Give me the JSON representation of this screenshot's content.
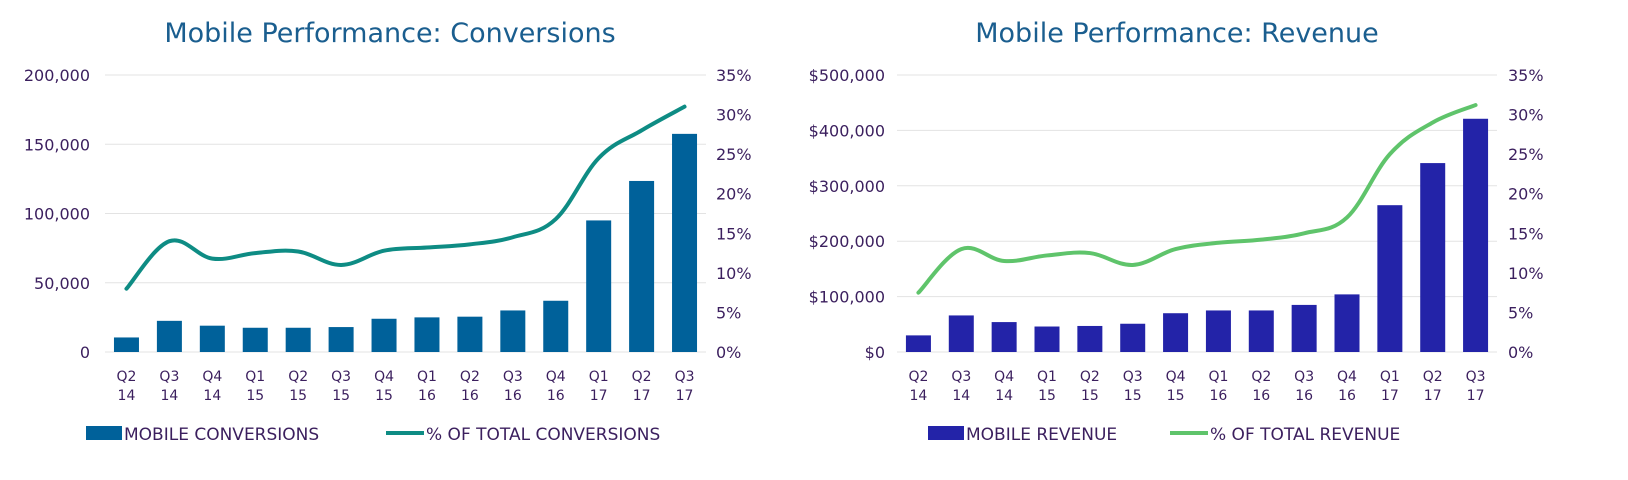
{
  "charts": [
    {
      "title": "Mobile Performance: Conversions",
      "bar_color": "#00619a",
      "line_color": "#0e8c84",
      "legend": {
        "bar_label": "MOBILE CONVERSIONS",
        "line_label": "% OF TOTAL CONVERSIONS"
      },
      "y_left_ticks": [
        "0",
        "50,000",
        "100,000",
        "150,000",
        "200,000"
      ],
      "y_right_ticks": [
        "0%",
        "5%",
        "10%",
        "15%",
        "20%",
        "25%",
        "30%",
        "35%"
      ]
    },
    {
      "title": "Mobile Performance: Revenue",
      "bar_color": "#2323a8",
      "line_color": "#5fc46b",
      "legend": {
        "bar_label": "MOBILE REVENUE",
        "line_label": "% OF TOTAL REVENUE"
      },
      "y_left_ticks": [
        "$0",
        "$100,000",
        "$200,000",
        "$300,000",
        "$400,000",
        "$500,000"
      ],
      "y_right_ticks": [
        "0%",
        "5%",
        "10%",
        "15%",
        "20%",
        "25%",
        "30%",
        "35%"
      ]
    }
  ],
  "chart_data": [
    {
      "type": "bar",
      "title": "Mobile Performance: Conversions",
      "categories": [
        [
          "Q2",
          "14"
        ],
        [
          "Q3",
          "14"
        ],
        [
          "Q4",
          "14"
        ],
        [
          "Q1",
          "15"
        ],
        [
          "Q2",
          "15"
        ],
        [
          "Q3",
          "15"
        ],
        [
          "Q4",
          "15"
        ],
        [
          "Q1",
          "16"
        ],
        [
          "Q2",
          "16"
        ],
        [
          "Q3",
          "16"
        ],
        [
          "Q4",
          "16"
        ],
        [
          "Q1",
          "17"
        ],
        [
          "Q2",
          "17"
        ],
        [
          "Q3",
          "17"
        ]
      ],
      "ylim": [
        0,
        200000
      ],
      "y2lim": [
        0,
        35
      ],
      "legend_position": "bottom",
      "series": [
        {
          "name": "MOBILE CONVERSIONS",
          "type": "bar",
          "axis": "left",
          "values": [
            10500,
            22500,
            19000,
            17500,
            17500,
            18000,
            24000,
            25000,
            25500,
            30000,
            37000,
            95000,
            123500,
            157500
          ]
        },
        {
          "name": "% OF TOTAL CONVERSIONS",
          "type": "line",
          "axis": "right",
          "unit": "%",
          "values": [
            8.0,
            14.0,
            11.8,
            12.5,
            12.7,
            11.0,
            12.8,
            13.2,
            13.6,
            14.5,
            16.8,
            24.5,
            28.0,
            31.0
          ]
        }
      ]
    },
    {
      "type": "bar",
      "title": "Mobile Performance: Revenue",
      "categories": [
        [
          "Q2",
          "14"
        ],
        [
          "Q3",
          "14"
        ],
        [
          "Q4",
          "14"
        ],
        [
          "Q1",
          "15"
        ],
        [
          "Q2",
          "15"
        ],
        [
          "Q3",
          "15"
        ],
        [
          "Q4",
          "15"
        ],
        [
          "Q1",
          "16"
        ],
        [
          "Q2",
          "16"
        ],
        [
          "Q3",
          "16"
        ],
        [
          "Q4",
          "16"
        ],
        [
          "Q1",
          "17"
        ],
        [
          "Q2",
          "17"
        ],
        [
          "Q3",
          "17"
        ]
      ],
      "ylim": [
        0,
        500000
      ],
      "y2lim": [
        0,
        35
      ],
      "legend_position": "bottom",
      "series": [
        {
          "name": "MOBILE REVENUE",
          "type": "bar",
          "axis": "left",
          "values": [
            30000,
            66000,
            54000,
            46000,
            47000,
            51000,
            70000,
            75000,
            75000,
            85000,
            104000,
            265000,
            341000,
            421000
          ]
        },
        {
          "name": "% OF TOTAL REVENUE",
          "type": "line",
          "axis": "right",
          "unit": "%",
          "values": [
            7.5,
            13.0,
            11.5,
            12.2,
            12.5,
            11.0,
            13.0,
            13.8,
            14.2,
            15.0,
            17.0,
            25.0,
            29.0,
            31.2
          ]
        }
      ]
    }
  ]
}
